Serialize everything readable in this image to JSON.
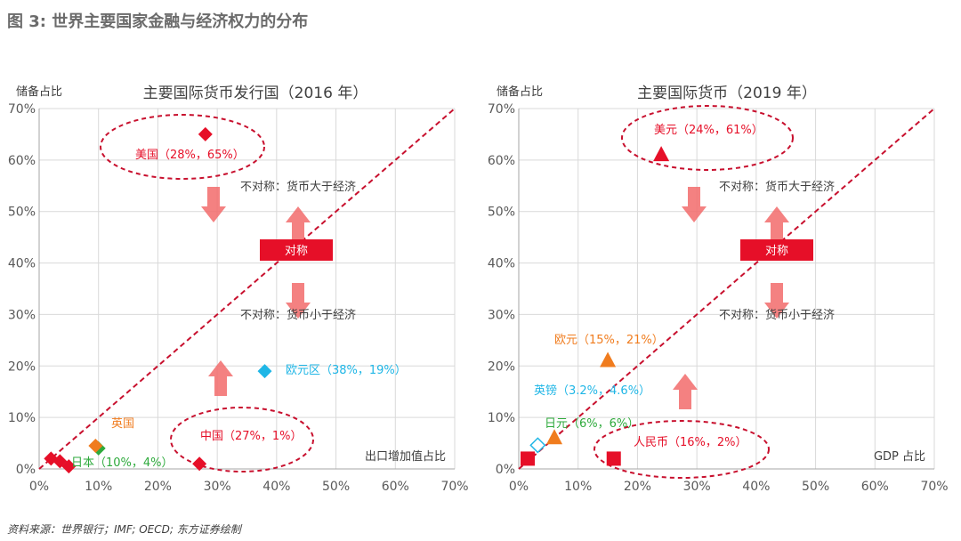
{
  "figure_title": "图 3: 世界主要国家金融与经济权力的分布",
  "source": "资料来源：世界银行；IMF; OECD; 东方证券绘制",
  "colors": {
    "red": "#e60f28",
    "dash": "#c8102e",
    "orange": "#f07c1e",
    "green": "#2eaa3c",
    "cyan": "#1fb6e6",
    "arrow": "#f26b6b",
    "grid": "#d9d9d9",
    "axis_text": "#595959"
  },
  "chart_data": [
    {
      "type": "scatter",
      "title": "主要国际货币发行国（2016 年）",
      "ylabel": "储备占比",
      "xlabel": "出口增加值占比",
      "xlim": [
        0,
        70
      ],
      "ylim": [
        0,
        70
      ],
      "xticks": [
        "0%",
        "10%",
        "20%",
        "30%",
        "40%",
        "50%",
        "60%",
        "70%"
      ],
      "yticks": [
        "0%",
        "10%",
        "20%",
        "30%",
        "40%",
        "50%",
        "60%",
        "70%"
      ],
      "grid": true,
      "reference_line": "y = x",
      "points": [
        {
          "x": 28,
          "y": 65,
          "marker": "diamond",
          "color": "red",
          "label": "美国（28%，65%）"
        },
        {
          "x": 27,
          "y": 1,
          "marker": "diamond",
          "color": "red",
          "label": "中国（27%，1%）"
        },
        {
          "x": 38,
          "y": 19,
          "marker": "diamond",
          "color": "cyan",
          "label": "欧元区（38%，19%）"
        },
        {
          "x": 10,
          "y": 4,
          "marker": "diamond",
          "color": "green",
          "label": "日本（10%，4%）"
        },
        {
          "x": 9.5,
          "y": 4.5,
          "marker": "diamond",
          "color": "orange",
          "label": "英国"
        },
        {
          "x": 2,
          "y": 2,
          "marker": "diamond",
          "color": "red",
          "label": ""
        },
        {
          "x": 3.5,
          "y": 1.5,
          "marker": "diamond",
          "color": "red",
          "label": ""
        },
        {
          "x": 5,
          "y": 0.5,
          "marker": "diamond",
          "color": "red",
          "label": ""
        }
      ],
      "annotations": {
        "upper": "不对称：货币大于经济",
        "symmetric": "对称",
        "lower": "不对称：货币小于经济"
      }
    },
    {
      "type": "scatter",
      "title": "主要国际货币（2019 年）",
      "ylabel": "储备占比",
      "xlabel": "GDP 占比",
      "xlim": [
        0,
        70
      ],
      "ylim": [
        0,
        70
      ],
      "xticks": [
        "0%",
        "10%",
        "20%",
        "30%",
        "40%",
        "50%",
        "60%",
        "70%"
      ],
      "yticks": [
        "0%",
        "10%",
        "20%",
        "30%",
        "40%",
        "50%",
        "60%",
        "70%"
      ],
      "grid": true,
      "reference_line": "y = x",
      "points": [
        {
          "x": 24,
          "y": 61,
          "marker": "triangle",
          "color": "red",
          "label": "美元（24%，61%）"
        },
        {
          "x": 15,
          "y": 21,
          "marker": "triangle",
          "color": "orange",
          "label": "欧元（15%，21%）"
        },
        {
          "x": 3.2,
          "y": 4.6,
          "marker": "diamond-open",
          "color": "cyan",
          "label": "英镑（3.2%，4.6%）"
        },
        {
          "x": 6,
          "y": 6,
          "marker": "triangle",
          "color": "orange",
          "label": "日元（6%，6%）"
        },
        {
          "x": 16,
          "y": 2,
          "marker": "square",
          "color": "red",
          "label": "人民币（16%，2%）"
        },
        {
          "x": 1.5,
          "y": 2,
          "marker": "square",
          "color": "red",
          "label": ""
        }
      ],
      "annotations": {
        "upper": "不对称：货币大于经济",
        "symmetric": "对称",
        "lower": "不对称：货币小于经济"
      }
    }
  ]
}
